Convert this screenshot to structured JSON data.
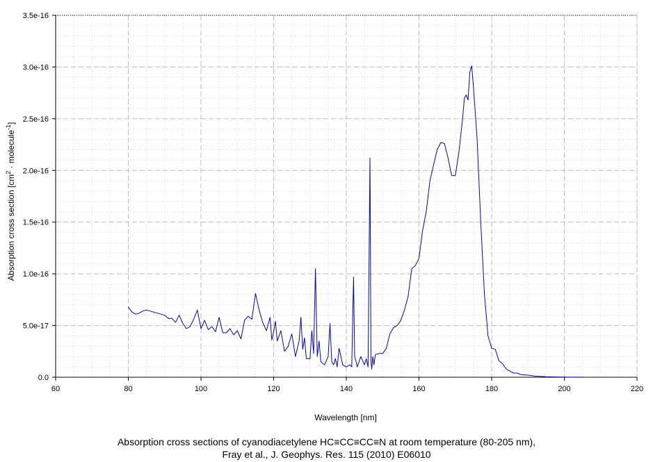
{
  "chart_data": {
    "type": "line",
    "title_line1": "Absorption cross sections of cyanodiacetylene HC≡CC≡CC≡N at room temperature (80-205 nm),",
    "title_line2": "Fray et al., J. Geophys. Res. 115 (2010) E06010",
    "xlabel": "Wavelength [nm]",
    "ylabel_main": "Absorption cross section [cm",
    "ylabel_sup1": "2",
    "ylabel_mid": " · molecule",
    "ylabel_sup2": "-1",
    "ylabel_end": "]",
    "xlim": [
      60,
      220
    ],
    "ylim": [
      0,
      3.5e-16
    ],
    "x_ticks": [
      60,
      80,
      100,
      120,
      140,
      160,
      180,
      200,
      220
    ],
    "x_tick_labels": [
      "60",
      "80",
      "100",
      "120",
      "140",
      "160",
      "180",
      "200",
      "220"
    ],
    "y_ticks": [
      0,
      5e-17,
      1e-16,
      1.5e-16,
      2e-16,
      2.5e-16,
      3e-16,
      3.5e-16
    ],
    "y_tick_labels": [
      "0.0",
      "5.0e-17",
      "1.0e-16",
      "1.5e-16",
      "2.0e-16",
      "2.5e-16",
      "3.0e-16",
      "3.5e-16"
    ],
    "grid": true,
    "line_color": "#0000cc",
    "series": [
      {
        "x": [
          80,
          81,
          82,
          83,
          84,
          85,
          86,
          88,
          90,
          91,
          92,
          93,
          94,
          95,
          96,
          97,
          98,
          99,
          100,
          101,
          102,
          103,
          104,
          105,
          106,
          107,
          108,
          109,
          110,
          111,
          112,
          113,
          114,
          115,
          116,
          117,
          118,
          119,
          119.5,
          120,
          120.5,
          121,
          122,
          123,
          124,
          125,
          126,
          127,
          127.5,
          128,
          128.5,
          129,
          130,
          130.5,
          131,
          131.5,
          132,
          132.5,
          133,
          134,
          135,
          135.5,
          136,
          136.5,
          137,
          137.5,
          138,
          139,
          140,
          141,
          141.5,
          142,
          142.3,
          142.7,
          143,
          144,
          145,
          145.5,
          146,
          146.5,
          146.8,
          147,
          147.3,
          147.6,
          148,
          149,
          150,
          151,
          152,
          153,
          154,
          155,
          156,
          157,
          158,
          159,
          160,
          161,
          162,
          163,
          164,
          165,
          166,
          167,
          168,
          169,
          170,
          171,
          172,
          172.5,
          173,
          173.5,
          174,
          174.5,
          175,
          176,
          177,
          178,
          179,
          180,
          181,
          182,
          183,
          184,
          185,
          186,
          187,
          188,
          190,
          192,
          195,
          198,
          200,
          202,
          205
        ],
        "y": [
          6.8e-17,
          6.3e-17,
          6.1e-17,
          6.2e-17,
          6.4e-17,
          6.5e-17,
          6.4e-17,
          6.2e-17,
          6e-17,
          5.7e-17,
          5.7e-17,
          5.3e-17,
          6e-17,
          5.2e-17,
          4.7e-17,
          4.9e-17,
          5.6e-17,
          6.5e-17,
          4.7e-17,
          5.5e-17,
          4.6e-17,
          4.9e-17,
          4.4e-17,
          5.8e-17,
          4.3e-17,
          4.3e-17,
          4.7e-17,
          4.1e-17,
          4.5e-17,
          3.7e-17,
          5.5e-17,
          5.9e-17,
          5.6e-17,
          8.1e-17,
          6.5e-17,
          5.3e-17,
          4.5e-17,
          5.8e-17,
          3.6e-17,
          4.4e-17,
          5.4e-17,
          3.5e-17,
          4.5e-17,
          2.5e-17,
          3e-17,
          4.2e-17,
          2e-17,
          3.5e-17,
          5.8e-17,
          2.7e-17,
          3.8e-17,
          1.8e-17,
          1.8e-17,
          4.5e-17,
          2.3e-17,
          1.05e-16,
          2e-17,
          3.5e-17,
          1.5e-17,
          1.2e-17,
          2e-17,
          5.2e-17,
          1.5e-17,
          1.2e-17,
          1.8e-17,
          1e-17,
          2.8e-17,
          1.2e-17,
          1e-17,
          1.2e-17,
          1e-17,
          9.7e-17,
          2e-17,
          1.5e-17,
          1e-17,
          2e-17,
          1.2e-17,
          1.8e-17,
          1e-17,
          2.12e-16,
          1.5e-17,
          8e-18,
          2e-17,
          1.2e-17,
          2.2e-17,
          2.3e-17,
          2.3e-17,
          2.8e-17,
          4.2e-17,
          4.8e-17,
          5e-17,
          5.5e-17,
          6.5e-17,
          7.8e-17,
          1.05e-16,
          1.08e-16,
          1.15e-16,
          1.42e-16,
          1.6e-16,
          1.9e-16,
          2.05e-16,
          2.2e-16,
          2.27e-16,
          2.26e-16,
          2.12e-16,
          1.95e-16,
          1.95e-16,
          2.18e-16,
          2.5e-16,
          2.7e-16,
          2.73e-16,
          2.68e-16,
          2.95e-16,
          3.01e-16,
          2.8e-16,
          2.3e-16,
          1.5e-16,
          8e-17,
          4e-17,
          2.8e-17,
          2.7e-17,
          1.6e-17,
          1.3e-17,
          8e-18,
          6e-18,
          4e-18,
          4e-18,
          2.5e-18,
          2e-18,
          1e-18,
          5e-19,
          3e-19,
          2e-19,
          1e-19,
          1e-19
        ]
      }
    ]
  }
}
